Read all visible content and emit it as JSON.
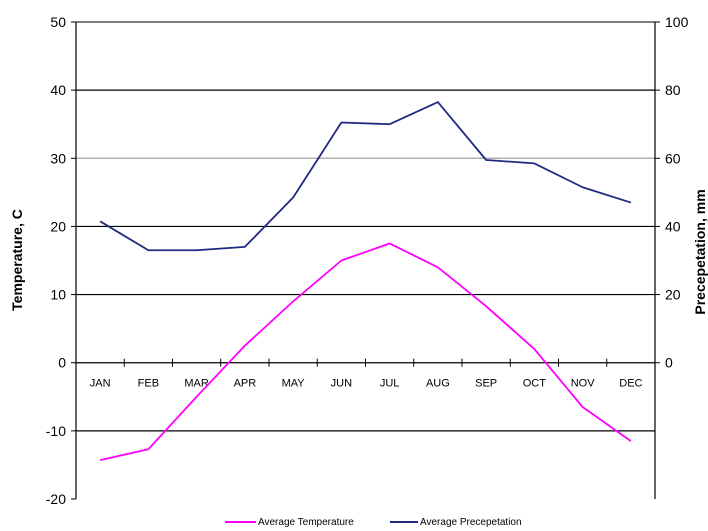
{
  "chart_data": {
    "type": "line",
    "categories": [
      "JAN",
      "FEB",
      "MAR",
      "APR",
      "MAY",
      "JUN",
      "JUL",
      "AUG",
      "SEP",
      "OCT",
      "NOV",
      "DEC"
    ],
    "y_left": {
      "label": "Temperature, C",
      "range": [
        -20,
        50
      ],
      "ticks": [
        "-20",
        "-10",
        "0",
        "10",
        "20",
        "30",
        "40",
        "50"
      ]
    },
    "y_right": {
      "label": "Precepetation, mm",
      "range": [
        -40,
        100
      ],
      "ticks": [
        "0",
        "20",
        "40",
        "60",
        "80",
        "100"
      ]
    },
    "series": [
      {
        "name": "Average Temperature",
        "axis": "left",
        "color": "#ff00ff",
        "values": [
          -14.3,
          -12.7,
          -5.0,
          2.5,
          9.0,
          15.0,
          17.5,
          14.0,
          8.3,
          2.0,
          -6.5,
          -11.5
        ]
      },
      {
        "name": "Average Precepetation",
        "axis": "right",
        "color": "#1f2a80",
        "values": [
          41.5,
          33.0,
          33.0,
          34.0,
          48.5,
          70.5,
          70.0,
          76.5,
          59.5,
          58.5,
          51.5,
          47.0
        ]
      }
    ],
    "gridlines": {
      "left_values": [
        10,
        20,
        30,
        40,
        -10
      ],
      "gray_values": [
        30
      ]
    },
    "legend": "bottom"
  }
}
